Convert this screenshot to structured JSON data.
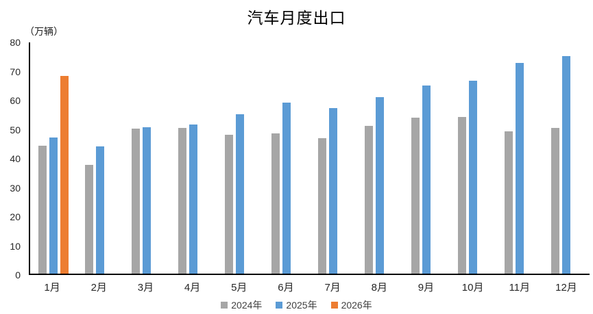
{
  "title": "汽车月度出口",
  "axis_unit_label": "（万辆）",
  "colors": {
    "series_2024": "#A6A6A6",
    "series_2025": "#5B9BD5",
    "series_2026": "#ED7D31",
    "axis_line": "#000000",
    "text": "#262626"
  },
  "chart_data": {
    "type": "bar",
    "title": "汽车月度出口",
    "ylabel": "（万辆）",
    "xlabel": "",
    "categories": [
      "1月",
      "2月",
      "3月",
      "4月",
      "5月",
      "6月",
      "7月",
      "8月",
      "9月",
      "10月",
      "11月",
      "12月"
    ],
    "series": [
      {
        "name": "2024年",
        "color": "#A6A6A6",
        "values": [
          44.3,
          37.7,
          50.2,
          50.4,
          48.1,
          48.5,
          46.9,
          51.1,
          53.9,
          54.2,
          49.2,
          50.5
        ]
      },
      {
        "name": "2025年",
        "color": "#5B9BD5",
        "values": [
          47.0,
          44.1,
          50.7,
          51.7,
          55.1,
          59.2,
          57.4,
          61.1,
          65.0,
          66.7,
          73.0,
          75.3
        ]
      },
      {
        "name": "2026年",
        "color": "#ED7D31",
        "values": [
          68.5,
          null,
          null,
          null,
          null,
          null,
          null,
          null,
          null,
          null,
          null,
          null
        ]
      }
    ],
    "ylim": [
      0,
      80
    ],
    "yticks": [
      0,
      10,
      20,
      30,
      40,
      50,
      60,
      70,
      80
    ],
    "grid": false,
    "legend_position": "bottom"
  }
}
